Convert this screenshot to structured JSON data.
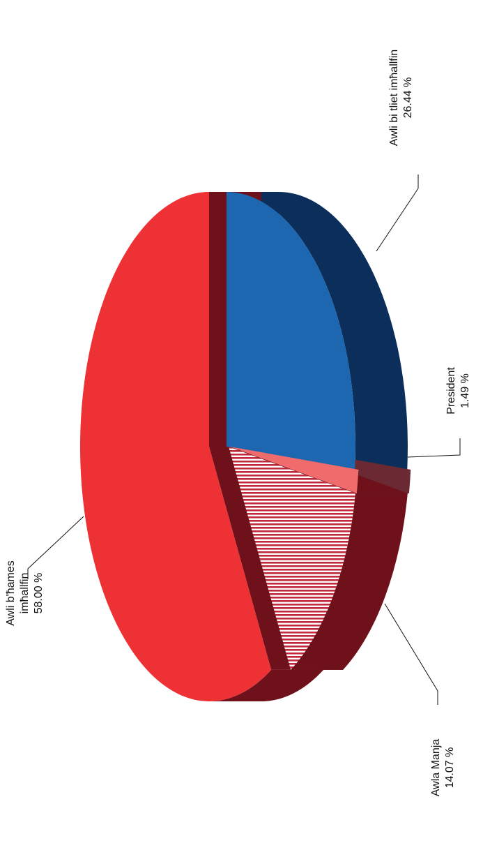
{
  "chart_data": {
    "type": "pie",
    "style": "3d-exploded",
    "orientation": "rotated-90",
    "slices": [
      {
        "label_lines": [
          "Awli bi tliet imħallfin"
        ],
        "value": 26.44,
        "value_text": "26.44 %",
        "color": "#1c67b0",
        "side_color": "#0b2f5a",
        "pattern": "solid"
      },
      {
        "label_lines": [
          "President"
        ],
        "value": 1.49,
        "value_text": "1.49 %",
        "color": "#f06b6b",
        "side_color": "#6b2a33",
        "pattern": "solid"
      },
      {
        "label_lines": [
          "Awla Manja"
        ],
        "value": 14.07,
        "value_text": "14.07 %",
        "color": "#c1283b",
        "side_color": "#6e111b",
        "pattern": "stripes"
      },
      {
        "label_lines": [
          "Awli b'ħames",
          "imħallfin"
        ],
        "value": 58.0,
        "value_text": "58.00 %",
        "color": "#ee3135",
        "side_color": "#6e111b",
        "pattern": "solid"
      }
    ]
  }
}
